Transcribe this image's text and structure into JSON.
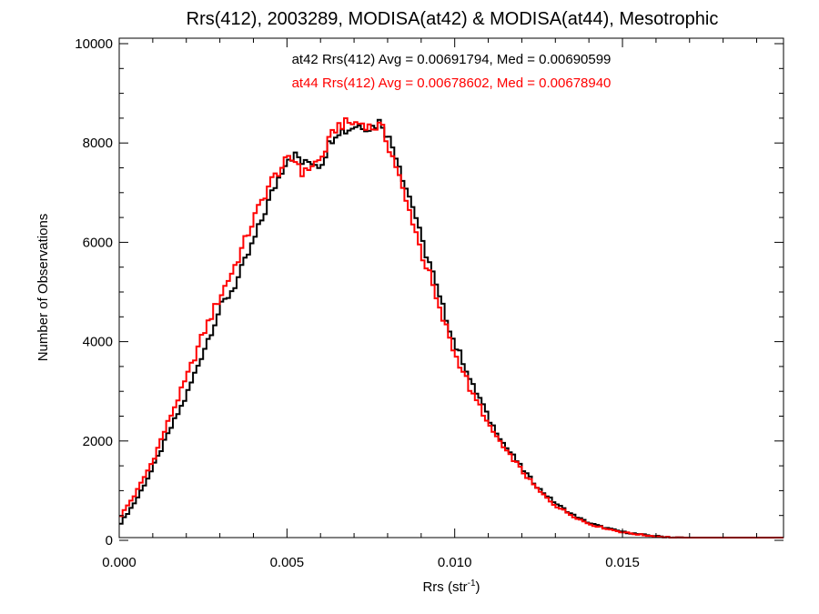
{
  "chart_data": {
    "type": "line",
    "title": "Rrs(412), 2003289, MODISA(at42) & MODISA(at44), Mesotrophic",
    "xlabel": "Rrs (str",
    "xlabel_sup": "-1",
    "xlabel_close": ")",
    "ylabel": "Number of Observations",
    "xlim": [
      0,
      0.0198
    ],
    "ylim": [
      0,
      10000
    ],
    "x_ticks": [
      {
        "value": 0.0,
        "label": "0.000"
      },
      {
        "value": 0.005,
        "label": "0.005"
      },
      {
        "value": 0.01,
        "label": "0.010"
      },
      {
        "value": 0.015,
        "label": "0.015"
      }
    ],
    "y_ticks": [
      {
        "value": 0,
        "label": "0"
      },
      {
        "value": 2000,
        "label": "2000"
      },
      {
        "value": 4000,
        "label": "4000"
      },
      {
        "value": 6000,
        "label": "6000"
      },
      {
        "value": 8000,
        "label": "8000"
      },
      {
        "value": 10000,
        "label": "10000"
      }
    ],
    "grid": false,
    "annotations": [
      {
        "text": "at42 Rrs(412) Avg = 0.00691794, Med = 0.00690599",
        "color": "#000000"
      },
      {
        "text": "at44 Rrs(412) Avg = 0.00678602, Med = 0.00678940",
        "color": "#ff0000"
      }
    ],
    "step": 0.0001,
    "series": [
      {
        "color": "#000000",
        "x": [
          0.0,
          0.0005,
          0.001,
          0.0015,
          0.002,
          0.0025,
          0.003,
          0.0035,
          0.004,
          0.0045,
          0.005,
          0.0053,
          0.0055,
          0.0057,
          0.006,
          0.0063,
          0.0065,
          0.0068,
          0.007,
          0.0073,
          0.0075,
          0.0078,
          0.008,
          0.0083,
          0.0085,
          0.0088,
          0.009,
          0.0093,
          0.0095,
          0.0098,
          0.01,
          0.0103,
          0.0105,
          0.0108,
          0.011,
          0.0113,
          0.0115,
          0.0118,
          0.012,
          0.0125,
          0.013,
          0.0135,
          0.014,
          0.0145,
          0.015,
          0.0155,
          0.016,
          0.0165,
          0.017,
          0.0175,
          0.018,
          0.0185,
          0.019,
          0.0198
        ],
        "y": [
          300,
          800,
          1450,
          2200,
          2900,
          3800,
          4650,
          5200,
          6000,
          6900,
          7700,
          7750,
          7550,
          7650,
          7550,
          8050,
          8250,
          8250,
          8350,
          8350,
          8300,
          8450,
          8150,
          7700,
          7200,
          6650,
          6050,
          5500,
          4950,
          4400,
          3950,
          3550,
          3150,
          2800,
          2450,
          2150,
          1900,
          1650,
          1450,
          1050,
          750,
          520,
          350,
          250,
          170,
          120,
          85,
          60,
          45,
          30,
          20,
          15,
          10,
          5
        ]
      },
      {
        "color": "#ff0000",
        "x": [
          0.0,
          0.0005,
          0.001,
          0.0015,
          0.002,
          0.0025,
          0.003,
          0.0035,
          0.004,
          0.0045,
          0.005,
          0.0053,
          0.0055,
          0.0057,
          0.006,
          0.0063,
          0.0065,
          0.0068,
          0.007,
          0.0073,
          0.0075,
          0.0078,
          0.008,
          0.0083,
          0.0085,
          0.0088,
          0.009,
          0.0093,
          0.0095,
          0.0098,
          0.01,
          0.0103,
          0.0105,
          0.0108,
          0.011,
          0.0113,
          0.0115,
          0.0118,
          0.012,
          0.0125,
          0.013,
          0.0135,
          0.014,
          0.0145,
          0.015,
          0.0155,
          0.016,
          0.0165,
          0.017,
          0.0175,
          0.018,
          0.0185,
          0.019,
          0.0198
        ],
        "y": [
          450,
          950,
          1600,
          2450,
          3250,
          4150,
          4900,
          5600,
          6450,
          7200,
          7650,
          7650,
          7350,
          7550,
          7650,
          8100,
          8350,
          8400,
          8400,
          8400,
          8300,
          8350,
          8000,
          7450,
          6900,
          6350,
          5800,
          5250,
          4700,
          4200,
          3750,
          3350,
          2950,
          2650,
          2300,
          2050,
          1800,
          1600,
          1400,
          1000,
          700,
          500,
          330,
          240,
          165,
          115,
          80,
          55,
          40,
          28,
          18,
          12,
          8,
          5
        ]
      }
    ]
  }
}
